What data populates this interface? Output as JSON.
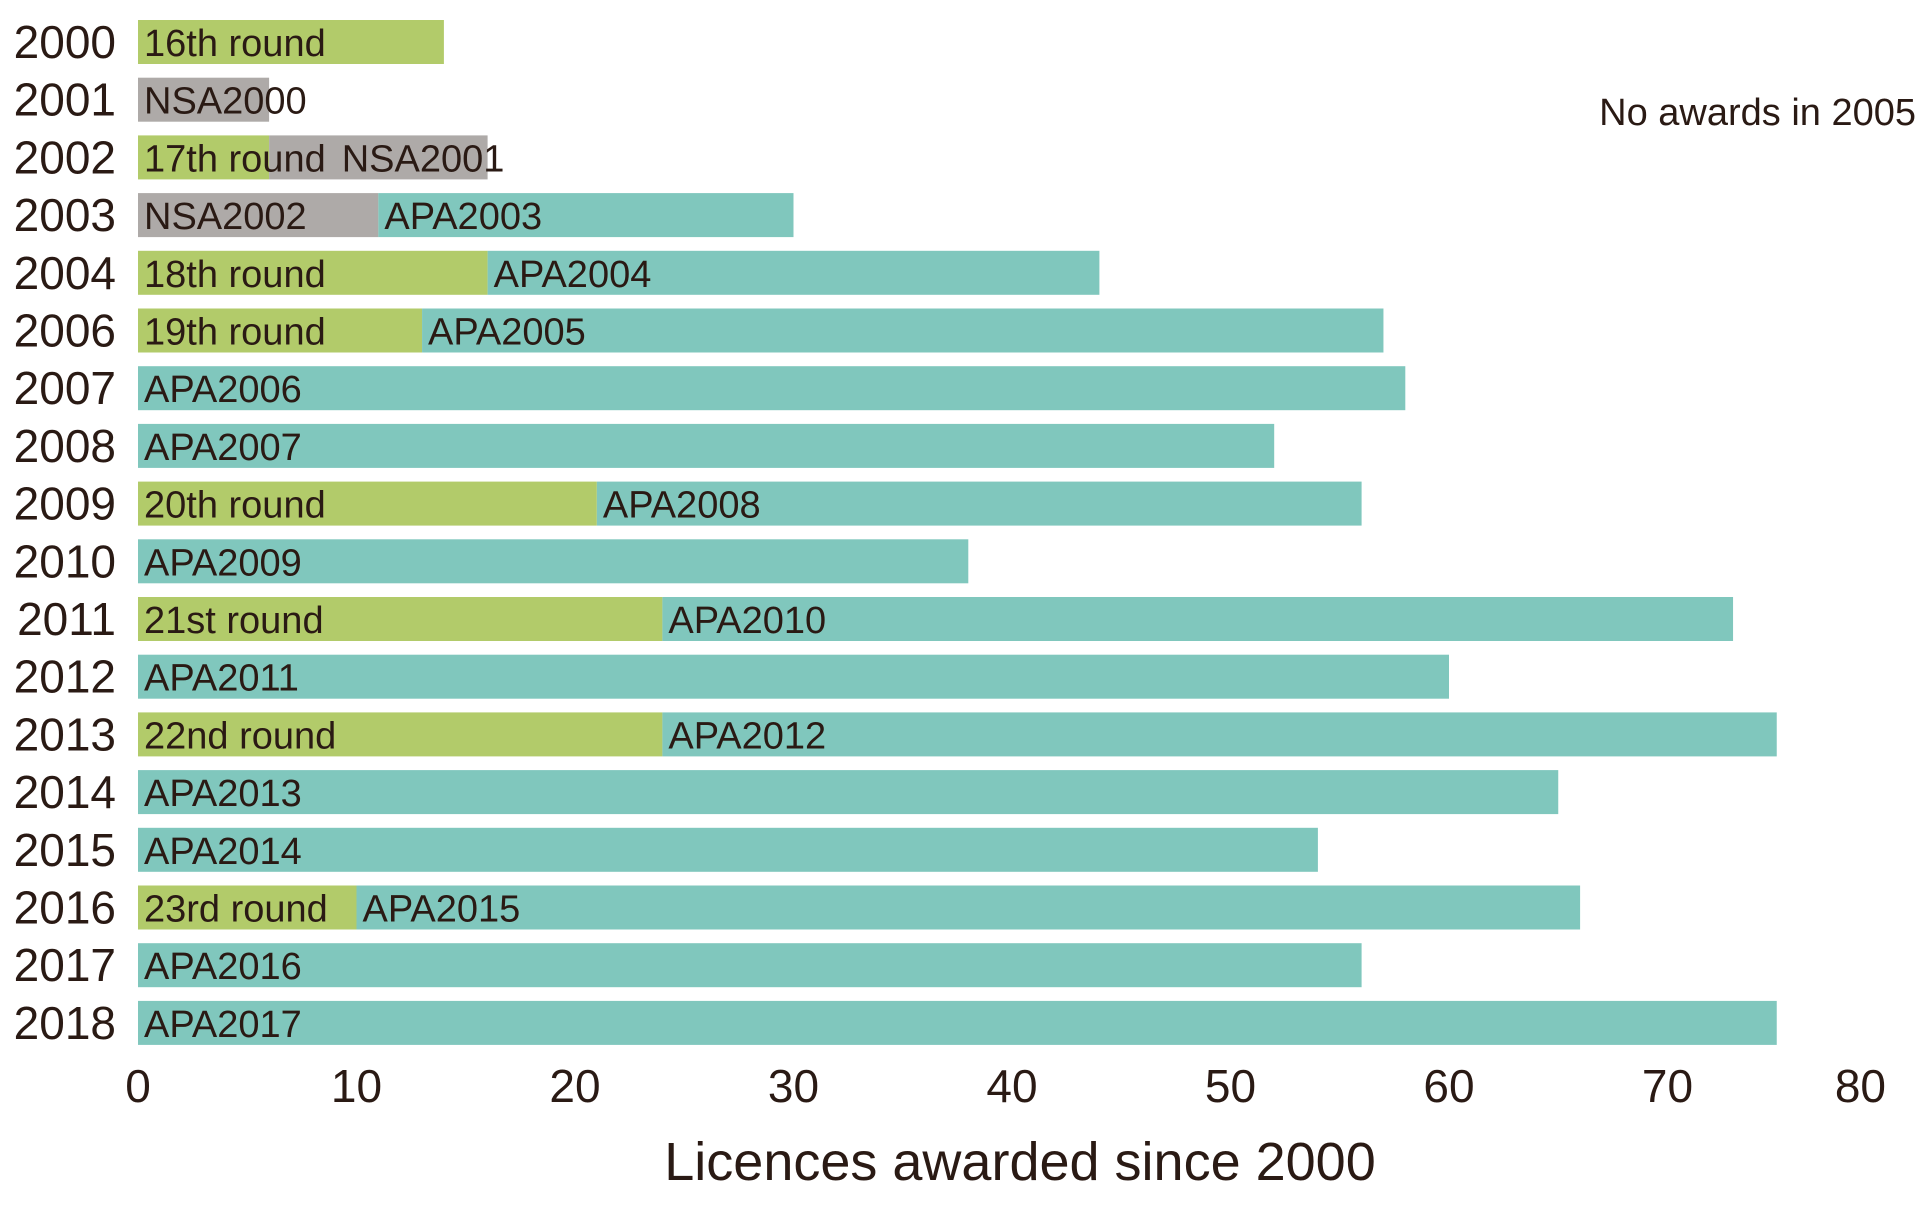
{
  "chart_data": {
    "type": "bar",
    "orientation": "horizontal",
    "stacked": true,
    "title": "",
    "xlabel": "Licences awarded since 2000",
    "ylabel": "",
    "xlim": [
      0,
      80
    ],
    "x_ticks": [
      "0",
      "10",
      "20",
      "30",
      "40",
      "50",
      "60",
      "70",
      "80"
    ],
    "grid": false,
    "legend": "none",
    "annotation": "No awards in 2005",
    "colors": {
      "round": "#b2cb6a",
      "NSA": "#aeaaa8",
      "APA": "#80c7bd"
    },
    "categories": [
      "2000",
      "2001",
      "2002",
      "2003",
      "2004",
      "2006",
      "2007",
      "2008",
      "2009",
      "2010",
      "2011",
      "2012",
      "2013",
      "2014",
      "2015",
      "2016",
      "2017",
      "2018"
    ],
    "rows": [
      {
        "year": "2000",
        "segments": [
          {
            "label": "16th round",
            "kind": "round",
            "value": 14
          }
        ]
      },
      {
        "year": "2001",
        "segments": [
          {
            "label": "NSA2000",
            "kind": "NSA",
            "value": 6
          }
        ]
      },
      {
        "year": "2002",
        "segments": [
          {
            "label": "17th round",
            "kind": "round",
            "value": 6
          },
          {
            "label": "NSA2001",
            "kind": "NSA",
            "value": 10
          }
        ]
      },
      {
        "year": "2003",
        "segments": [
          {
            "label": "NSA2002",
            "kind": "NSA",
            "value": 11
          },
          {
            "label": "APA2003",
            "kind": "APA",
            "value": 19
          }
        ]
      },
      {
        "year": "2004",
        "segments": [
          {
            "label": "18th round",
            "kind": "round",
            "value": 16
          },
          {
            "label": "APA2004",
            "kind": "APA",
            "value": 28
          }
        ]
      },
      {
        "year": "2006",
        "segments": [
          {
            "label": "19th round",
            "kind": "round",
            "value": 13
          },
          {
            "label": "APA2005",
            "kind": "APA",
            "value": 44
          }
        ]
      },
      {
        "year": "2007",
        "segments": [
          {
            "label": "APA2006",
            "kind": "APA",
            "value": 58
          }
        ]
      },
      {
        "year": "2008",
        "segments": [
          {
            "label": "APA2007",
            "kind": "APA",
            "value": 52
          }
        ]
      },
      {
        "year": "2009",
        "segments": [
          {
            "label": "20th round",
            "kind": "round",
            "value": 21
          },
          {
            "label": "APA2008",
            "kind": "APA",
            "value": 35
          }
        ]
      },
      {
        "year": "2010",
        "segments": [
          {
            "label": "APA2009",
            "kind": "APA",
            "value": 38
          }
        ]
      },
      {
        "year": "2011",
        "segments": [
          {
            "label": "21st round",
            "kind": "round",
            "value": 24
          },
          {
            "label": "APA2010",
            "kind": "APA",
            "value": 49
          }
        ]
      },
      {
        "year": "2012",
        "segments": [
          {
            "label": "APA2011",
            "kind": "APA",
            "value": 60
          }
        ]
      },
      {
        "year": "2013",
        "segments": [
          {
            "label": "22nd round",
            "kind": "round",
            "value": 24
          },
          {
            "label": "APA2012",
            "kind": "APA",
            "value": 51
          }
        ]
      },
      {
        "year": "2014",
        "segments": [
          {
            "label": "APA2013",
            "kind": "APA",
            "value": 65
          }
        ]
      },
      {
        "year": "2015",
        "segments": [
          {
            "label": "APA2014",
            "kind": "APA",
            "value": 54
          }
        ]
      },
      {
        "year": "2016",
        "segments": [
          {
            "label": "23rd round",
            "kind": "round",
            "value": 10
          },
          {
            "label": "APA2015",
            "kind": "APA",
            "value": 56
          }
        ]
      },
      {
        "year": "2017",
        "segments": [
          {
            "label": "APA2016",
            "kind": "APA",
            "value": 56
          }
        ]
      },
      {
        "year": "2018",
        "segments": [
          {
            "label": "APA2017",
            "kind": "APA",
            "value": 75
          }
        ]
      }
    ]
  }
}
